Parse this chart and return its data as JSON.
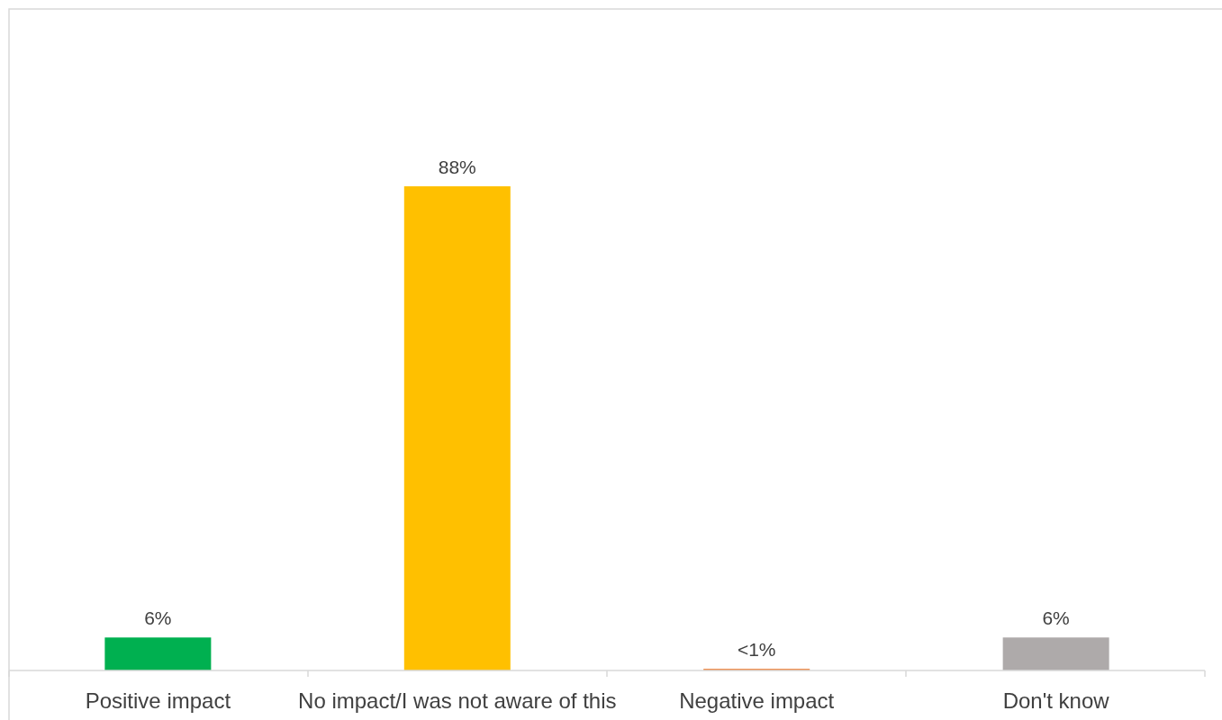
{
  "chart_data": {
    "type": "bar",
    "categories": [
      "Positive impact",
      "No impact/I was not aware of this",
      "Negative impact",
      "Don't know"
    ],
    "values": [
      6,
      88,
      0.3,
      6
    ],
    "colors": [
      "#00b050",
      "#ffc000",
      "#ed7d31",
      "#aeaaaa"
    ],
    "value_labels": [
      "6%",
      "88%",
      "<1%",
      "6%"
    ]
  }
}
